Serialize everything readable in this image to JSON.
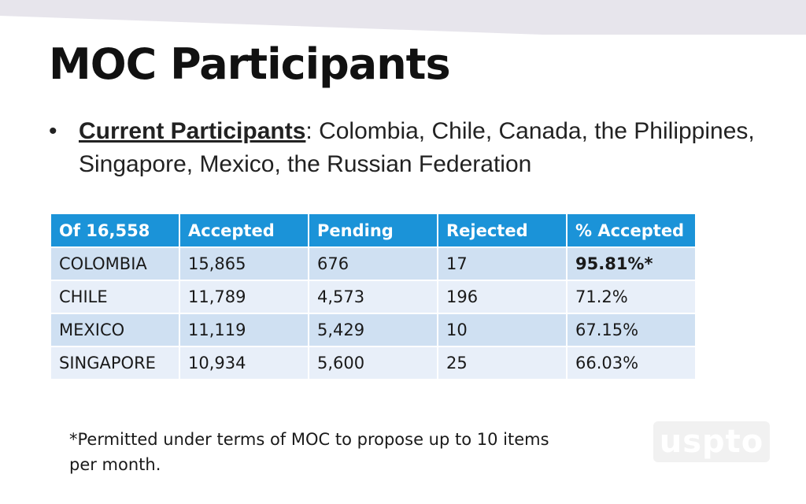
{
  "title": "MOC Participants",
  "bullet": {
    "symbol": "•",
    "label": "Current Participants",
    "text": ": Colombia, Chile, Canada, the Philippines, Singapore, Mexico, the Russian Federation"
  },
  "table": {
    "headers": [
      "Of 16,558",
      "Accepted",
      "Pending",
      "Rejected",
      "% Accepted"
    ],
    "rows": [
      [
        "COLOMBIA",
        "15,865",
        "676",
        "17",
        "95.81%*"
      ],
      [
        "CHILE",
        "11,789",
        "4,573",
        "196",
        "71.2%"
      ],
      [
        "MEXICO",
        "11,119",
        "5,429",
        "10",
        "67.15%"
      ],
      [
        "SINGAPORE",
        "10,934",
        "5,600",
        "25",
        "66.03%"
      ]
    ]
  },
  "footnote": "*Permitted under terms of MOC to propose up to 10 items per month.",
  "logo": {
    "text": "uspto",
    "icon": "uspto-logo"
  },
  "colors": {
    "header_bg": "#1b93d8",
    "row_dark": "#cfe0f2",
    "row_light": "#e8eff9",
    "top_band": "#e7e5ec"
  }
}
